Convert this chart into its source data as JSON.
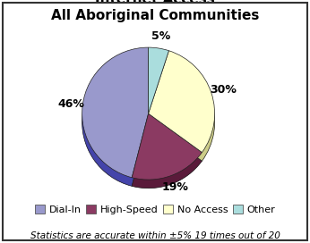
{
  "title": "Internet Access\nAll Aboriginal Communities",
  "slices": [
    46,
    19,
    30,
    5
  ],
  "pct_labels": [
    "46%",
    "19%",
    "30%",
    "5%"
  ],
  "legend_labels": [
    "Dial-In",
    "High-Speed",
    "No Access",
    "Other"
  ],
  "colors": [
    "#9999cc",
    "#8b3a62",
    "#ffffcc",
    "#aadddd"
  ],
  "dark_colors": [
    "#4444aa",
    "#5a1a3a",
    "#cccc88",
    "#6699aa"
  ],
  "startangle": 90,
  "footer": "Statistics are accurate within ±5% 19 times out of 20",
  "bg_color": "#ffffff",
  "title_fontsize": 11,
  "label_fontsize": 9,
  "legend_fontsize": 8,
  "footer_fontsize": 7.5
}
